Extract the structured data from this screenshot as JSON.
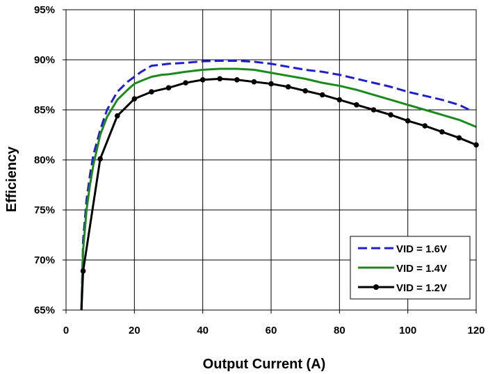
{
  "chart_data": {
    "type": "line",
    "title": "",
    "xlabel": "Output Current (A)",
    "ylabel": "Efficiency",
    "xlim": [
      0,
      120
    ],
    "ylim": [
      65,
      95
    ],
    "x_ticks": [
      0,
      20,
      40,
      60,
      80,
      100,
      120
    ],
    "x_tick_labels": [
      "0",
      "20",
      "40",
      "60",
      "80",
      "100",
      "120"
    ],
    "y_ticks": [
      65,
      70,
      75,
      80,
      85,
      90,
      95
    ],
    "y_tick_labels": [
      "65%",
      "70%",
      "75%",
      "80%",
      "85%",
      "90%",
      "95%"
    ],
    "grid": true,
    "legend_position": "bottom-right",
    "series": [
      {
        "name": "VID = 1.6V",
        "color": "#1f1fd0",
        "style": "dashed",
        "x": [
          4.5,
          5,
          6,
          7,
          8,
          10,
          12,
          15,
          18,
          20,
          22,
          25,
          30,
          35,
          40,
          45,
          50,
          55,
          60,
          65,
          70,
          75,
          80,
          85,
          90,
          95,
          100,
          105,
          110,
          115,
          118
        ],
        "y": [
          65,
          72,
          76,
          78.5,
          80.5,
          83,
          85,
          86.8,
          87.8,
          88.3,
          88.8,
          89.4,
          89.6,
          89.7,
          89.85,
          89.9,
          89.9,
          89.8,
          89.6,
          89.3,
          89.0,
          88.8,
          88.5,
          88.1,
          87.7,
          87.3,
          86.8,
          86.4,
          86.0,
          85.5,
          85.0
        ]
      },
      {
        "name": "VID = 1.4V",
        "color": "#1a8a1a",
        "style": "solid",
        "x": [
          4.5,
          5,
          6,
          7,
          8,
          10,
          12,
          15,
          18,
          20,
          22,
          25,
          28,
          30,
          35,
          40,
          45,
          50,
          55,
          60,
          65,
          70,
          75,
          80,
          85,
          90,
          95,
          100,
          105,
          110,
          115,
          120
        ],
        "y": [
          65,
          71,
          75,
          77.5,
          79.5,
          82.5,
          84.3,
          86,
          87,
          87.6,
          87.9,
          88.3,
          88.5,
          88.55,
          88.8,
          89.0,
          89.1,
          89.1,
          89.0,
          88.7,
          88.4,
          88.1,
          87.7,
          87.4,
          87.0,
          86.5,
          86.0,
          85.5,
          85.0,
          84.5,
          84.0,
          83.3
        ]
      },
      {
        "name": "VID = 1.2V",
        "color": "#000000",
        "style": "solid-markers",
        "x": [
          4.5,
          5,
          10,
          15,
          20,
          25,
          30,
          35,
          40,
          45,
          50,
          55,
          60,
          65,
          70,
          75,
          80,
          85,
          90,
          95,
          100,
          105,
          110,
          115,
          120
        ],
        "y": [
          65,
          68.9,
          80.1,
          84.4,
          86.1,
          86.8,
          87.2,
          87.7,
          88.0,
          88.1,
          88.0,
          87.8,
          87.6,
          87.3,
          86.9,
          86.5,
          86.0,
          85.5,
          85.0,
          84.5,
          83.9,
          83.4,
          82.8,
          82.2,
          81.5
        ],
        "markers": [
          false,
          true,
          true,
          true,
          true,
          true,
          true,
          true,
          true,
          true,
          true,
          true,
          true,
          true,
          true,
          true,
          true,
          true,
          true,
          true,
          true,
          true,
          true,
          true,
          true
        ]
      }
    ]
  }
}
